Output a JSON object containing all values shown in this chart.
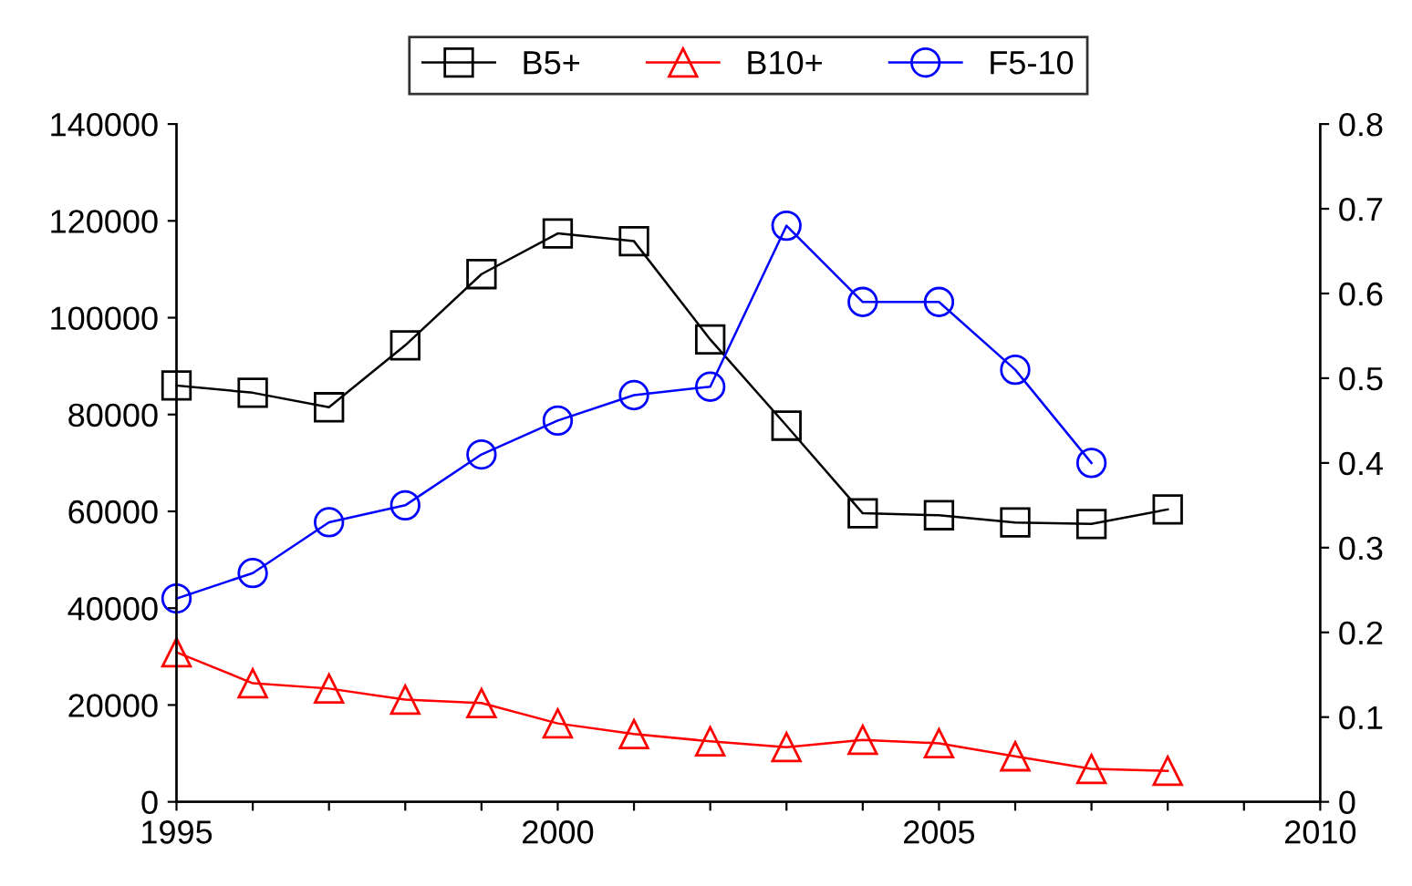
{
  "chart_data": {
    "type": "line",
    "x": [
      1995,
      1996,
      1997,
      1998,
      1999,
      2000,
      2001,
      2002,
      2003,
      2004,
      2005,
      2006,
      2007,
      2008
    ],
    "series": [
      {
        "name": "B5+",
        "color": "#000000",
        "marker": "square",
        "values": [
          86000,
          84500,
          81500,
          94300,
          109000,
          117400,
          115800,
          95500,
          77700,
          59600,
          59200,
          57700,
          57400,
          60400
        ]
      },
      {
        "name": "B10+",
        "color": "#ff0000",
        "marker": "triangle",
        "values": [
          30900,
          24500,
          23400,
          21100,
          20400,
          16200,
          14000,
          12500,
          11300,
          12800,
          12100,
          9400,
          6800,
          6400
        ]
      },
      {
        "name": "F5-10",
        "color": "#0000ff",
        "marker": "circle",
        "axis": "y2",
        "x": [
          1995,
          1996,
          1997,
          1998,
          1999,
          2000,
          2001,
          2002,
          2003,
          2004,
          2005,
          2006,
          2007
        ],
        "values": [
          0.24,
          0.27,
          0.33,
          0.35,
          0.41,
          0.45,
          0.48,
          0.49,
          0.68,
          0.59,
          0.59,
          0.51,
          0.4
        ]
      }
    ],
    "xlim": [
      1995,
      2010
    ],
    "xticks": [
      1995,
      {
        "value": 1996,
        "label": null
      },
      {
        "value": 1997,
        "label": null
      },
      {
        "value": 1998,
        "label": null
      },
      {
        "value": 1999,
        "label": null
      },
      2000,
      {
        "value": 2001,
        "label": null
      },
      {
        "value": 2002,
        "label": null
      },
      {
        "value": 2003,
        "label": null
      },
      {
        "value": 2004,
        "label": null
      },
      2005,
      {
        "value": 2006,
        "label": null
      },
      {
        "value": 2007,
        "label": null
      },
      {
        "value": 2008,
        "label": null
      },
      {
        "value": 2009,
        "label": null
      },
      2010
    ],
    "ylim": [
      0,
      140000
    ],
    "yticks": [
      0,
      20000,
      40000,
      60000,
      80000,
      100000,
      120000,
      140000
    ],
    "y2lim": [
      0,
      0.8
    ],
    "y2ticks": [
      0,
      0.1,
      0.2,
      0.3,
      0.4,
      0.5,
      0.6,
      0.7,
      0.8
    ],
    "legend": "top",
    "grid": false,
    "line_style": "solid"
  }
}
